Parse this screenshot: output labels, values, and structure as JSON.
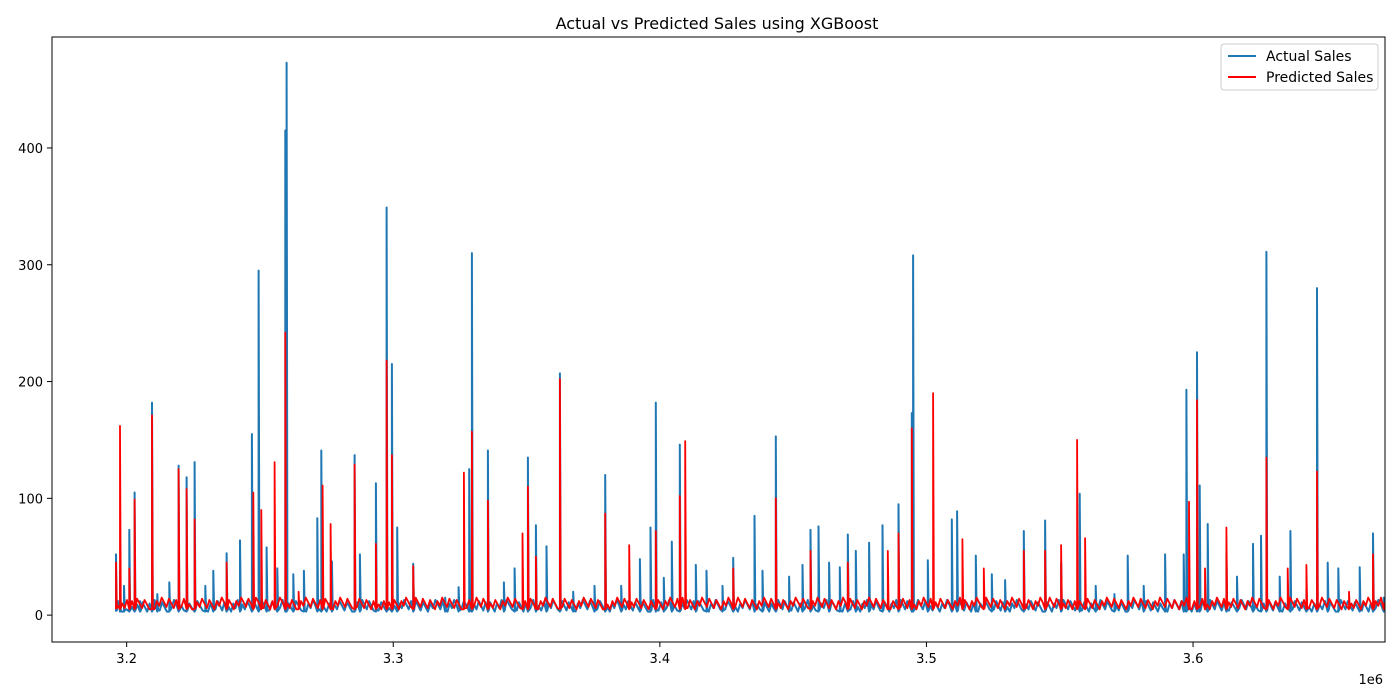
{
  "chart_data": {
    "type": "line",
    "title": "Actual vs Predicted Sales using XGBoost",
    "xlabel": "",
    "ylabel": "",
    "x_offset_label": "1e6",
    "xlim": [
      3.172,
      3.672
    ],
    "ylim": [
      -23,
      495
    ],
    "x_ticks": [
      3.2,
      3.3,
      3.4,
      3.5,
      3.6
    ],
    "x_tick_labels": [
      "3.2",
      "3.3",
      "3.4",
      "3.5",
      "3.6"
    ],
    "y_ticks": [
      0,
      100,
      200,
      300,
      400
    ],
    "y_tick_labels": [
      "0",
      "100",
      "200",
      "300",
      "400"
    ],
    "grid": false,
    "legend_position": "top-right",
    "series": [
      {
        "name": "Actual Sales",
        "color": "#1f77b4",
        "points": [
          [
            3.196,
            52
          ],
          [
            3.1975,
            38
          ],
          [
            3.199,
            25
          ],
          [
            3.201,
            73
          ],
          [
            3.203,
            105
          ],
          [
            3.205,
            12
          ],
          [
            3.2095,
            182
          ],
          [
            3.2115,
            18
          ],
          [
            3.216,
            28
          ],
          [
            3.2195,
            128
          ],
          [
            3.2225,
            118
          ],
          [
            3.2255,
            131
          ],
          [
            3.2295,
            25
          ],
          [
            3.2325,
            38
          ],
          [
            3.2375,
            53
          ],
          [
            3.2425,
            64
          ],
          [
            3.247,
            155
          ],
          [
            3.2495,
            295
          ],
          [
            3.2525,
            58
          ],
          [
            3.2565,
            40
          ],
          [
            3.2595,
            415
          ],
          [
            3.26,
            473
          ],
          [
            3.2625,
            35
          ],
          [
            3.2665,
            38
          ],
          [
            3.2715,
            83
          ],
          [
            3.273,
            141
          ],
          [
            3.277,
            46
          ],
          [
            3.2855,
            137
          ],
          [
            3.2875,
            52
          ],
          [
            3.2935,
            113
          ],
          [
            3.2975,
            349
          ],
          [
            3.2995,
            215
          ],
          [
            3.3015,
            75
          ],
          [
            3.3075,
            44
          ],
          [
            3.3195,
            15
          ],
          [
            3.3245,
            24
          ],
          [
            3.3285,
            125
          ],
          [
            3.3295,
            310
          ],
          [
            3.3355,
            141
          ],
          [
            3.3415,
            28
          ],
          [
            3.3455,
            40
          ],
          [
            3.3505,
            135
          ],
          [
            3.3535,
            77
          ],
          [
            3.3575,
            59
          ],
          [
            3.3625,
            207
          ],
          [
            3.3675,
            20
          ],
          [
            3.3755,
            25
          ],
          [
            3.3795,
            120
          ],
          [
            3.3855,
            25
          ],
          [
            3.3925,
            48
          ],
          [
            3.3965,
            75
          ],
          [
            3.3985,
            182
          ],
          [
            3.4015,
            32
          ],
          [
            3.4045,
            63
          ],
          [
            3.4075,
            146
          ],
          [
            3.4135,
            43
          ],
          [
            3.4175,
            38
          ],
          [
            3.4235,
            25
          ],
          [
            3.4275,
            49
          ],
          [
            3.4355,
            85
          ],
          [
            3.4385,
            38
          ],
          [
            3.4435,
            153
          ],
          [
            3.4485,
            33
          ],
          [
            3.4535,
            43
          ],
          [
            3.4565,
            73
          ],
          [
            3.4595,
            76
          ],
          [
            3.4635,
            45
          ],
          [
            3.4675,
            41
          ],
          [
            3.4705,
            69
          ],
          [
            3.4735,
            55
          ],
          [
            3.4785,
            62
          ],
          [
            3.4835,
            77
          ],
          [
            3.4895,
            95
          ],
          [
            3.4945,
            173
          ],
          [
            3.495,
            308
          ],
          [
            3.5005,
            47
          ],
          [
            3.5095,
            82
          ],
          [
            3.5115,
            89
          ],
          [
            3.5185,
            51
          ],
          [
            3.5245,
            35
          ],
          [
            3.5295,
            30
          ],
          [
            3.5365,
            72
          ],
          [
            3.5445,
            81
          ],
          [
            3.5505,
            45
          ],
          [
            3.5575,
            104
          ],
          [
            3.5635,
            25
          ],
          [
            3.5705,
            18
          ],
          [
            3.5755,
            51
          ],
          [
            3.5815,
            25
          ],
          [
            3.5895,
            52
          ],
          [
            3.5965,
            52
          ],
          [
            3.5975,
            193
          ],
          [
            3.6015,
            225
          ],
          [
            3.6025,
            111
          ],
          [
            3.6055,
            78
          ],
          [
            3.6125,
            53
          ],
          [
            3.6165,
            33
          ],
          [
            3.6225,
            61
          ],
          [
            3.6255,
            68
          ],
          [
            3.6275,
            311
          ],
          [
            3.6325,
            33
          ],
          [
            3.6365,
            72
          ],
          [
            3.6425,
            22
          ],
          [
            3.6465,
            280
          ],
          [
            3.6505,
            45
          ],
          [
            3.6545,
            40
          ],
          [
            3.6625,
            41
          ],
          [
            3.6675,
            70
          ],
          [
            3.6715,
            15
          ]
        ]
      },
      {
        "name": "Predicted Sales",
        "color": "#ff0000",
        "points": [
          [
            3.196,
            45
          ],
          [
            3.1975,
            162
          ],
          [
            3.201,
            40
          ],
          [
            3.203,
            99
          ],
          [
            3.2095,
            171
          ],
          [
            3.2195,
            125
          ],
          [
            3.2225,
            108
          ],
          [
            3.2255,
            82
          ],
          [
            3.2375,
            45
          ],
          [
            3.2475,
            105
          ],
          [
            3.2505,
            90
          ],
          [
            3.2555,
            131
          ],
          [
            3.2595,
            242
          ],
          [
            3.2645,
            20
          ],
          [
            3.2735,
            111
          ],
          [
            3.2765,
            78
          ],
          [
            3.2855,
            129
          ],
          [
            3.2935,
            61
          ],
          [
            3.2975,
            218
          ],
          [
            3.2995,
            137
          ],
          [
            3.3075,
            42
          ],
          [
            3.3265,
            122
          ],
          [
            3.3295,
            157
          ],
          [
            3.3355,
            98
          ],
          [
            3.3485,
            70
          ],
          [
            3.3505,
            110
          ],
          [
            3.3535,
            50
          ],
          [
            3.3625,
            202
          ],
          [
            3.3795,
            87
          ],
          [
            3.3885,
            60
          ],
          [
            3.3985,
            72
          ],
          [
            3.4075,
            102
          ],
          [
            3.4095,
            149
          ],
          [
            3.4275,
            40
          ],
          [
            3.4435,
            100
          ],
          [
            3.4565,
            55
          ],
          [
            3.4705,
            45
          ],
          [
            3.4855,
            55
          ],
          [
            3.4895,
            70
          ],
          [
            3.4945,
            160
          ],
          [
            3.5025,
            190
          ],
          [
            3.5135,
            65
          ],
          [
            3.5215,
            40
          ],
          [
            3.5365,
            55
          ],
          [
            3.5445,
            55
          ],
          [
            3.5505,
            60
          ],
          [
            3.5565,
            150
          ],
          [
            3.5595,
            66
          ],
          [
            3.5985,
            97
          ],
          [
            3.6015,
            184
          ],
          [
            3.6045,
            40
          ],
          [
            3.6125,
            75
          ],
          [
            3.6275,
            135
          ],
          [
            3.6355,
            40
          ],
          [
            3.6425,
            43
          ],
          [
            3.6465,
            123
          ],
          [
            3.6585,
            20
          ],
          [
            3.6675,
            52
          ],
          [
            3.6715,
            10
          ]
        ]
      }
    ]
  }
}
